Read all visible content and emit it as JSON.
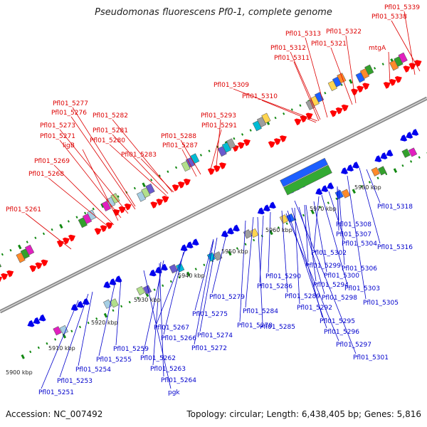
{
  "title": "Pseudomonas fluorescens Pf0-1, complete genome",
  "footer": {
    "accession": "Accession: NC_007492",
    "info": "Topology: circular; Length: 6,438,405 bp; Genes: 5,816"
  },
  "colors": {
    "forward_label": "#dd0000",
    "reverse_label": "#0000cc",
    "forward_arrow": "#ff0000",
    "reverse_arrow": "#0000ee",
    "backbone": "#888888",
    "tick": "#118811"
  },
  "scale_labels": [
    "5900 kbp",
    "5910 kbp",
    "5920 kbp",
    "5930 kbp",
    "5940 kbp",
    "5950 kbp",
    "5960 kbp",
    "5970 kbp",
    "5980 kbp"
  ],
  "forward_genes": [
    "Pfl01_5339",
    "Pfl01_5338",
    "Pfl01_5322",
    "Pfl01_5313",
    "Pfl01_5321",
    "Pfl01_5312",
    "Pfl01_5311",
    "mtgA",
    "Pfl01_5309",
    "Pfl01_5310",
    "Pfl01_5277",
    "Pfl01_5282",
    "Pfl01_5276",
    "Pfl01_5293",
    "Pfl01_5273",
    "Pfl01_5281",
    "Pfl01_5291",
    "Pfl01_5271",
    "Pfl01_5280",
    "Pfl01_5288",
    "ligB",
    "Pfl01_5287",
    "Pfl01_5283",
    "Pfl01_5269",
    "Pfl01_5268",
    "Pfl01_5261"
  ],
  "reverse_genes": [
    "Pfl01_5318",
    "Pfl01_5308",
    "Pfl01_5307",
    "Pfl01_5316",
    "Pfl01_5304",
    "Pfl01_5302",
    "Pfl01_5306",
    "Pfl01_5299",
    "Pfl01_5300",
    "Pfl01_5303",
    "Pfl01_5305",
    "Pfl01_5290",
    "Pfl01_5294",
    "Pfl01_5286",
    "Pfl01_5298",
    "Pfl01_5289",
    "Pfl01_5292",
    "Pfl01_5279",
    "Pfl01_5284",
    "Pfl01_5275",
    "Pfl01_5278",
    "Pfl01_5285",
    "Pfl01_5295",
    "Pfl01_5267",
    "Pfl01_5274",
    "Pfl01_5296",
    "Pfl01_5266",
    "Pfl01_5272",
    "Pfl01_5297",
    "Pfl01_5259",
    "Pfl01_5262",
    "Pfl01_5301",
    "Pfl01_5255",
    "Pfl01_5254",
    "Pfl01_5263",
    "Pfl01_5253",
    "Pfl01_5264",
    "Pfl01_5251",
    "pgk"
  ]
}
